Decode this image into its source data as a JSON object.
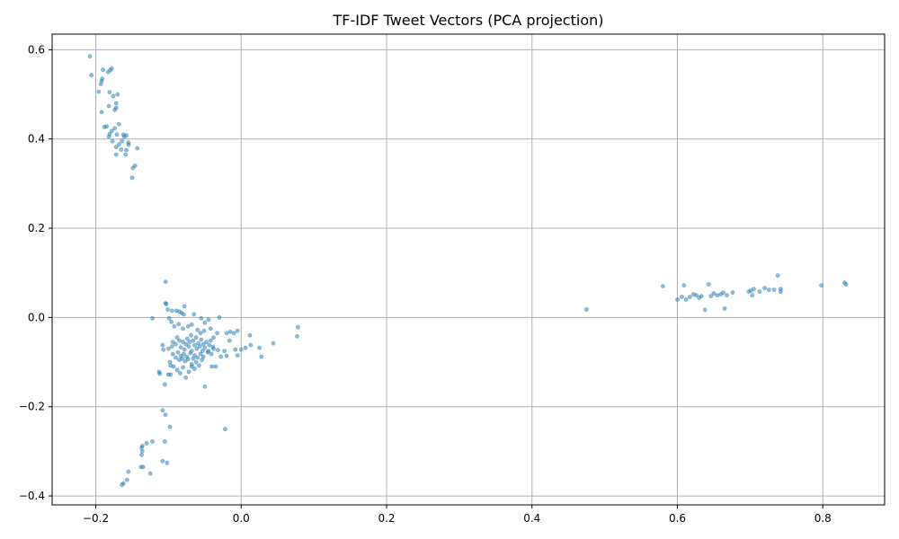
{
  "chart_data": {
    "type": "scatter",
    "title": "TF-IDF Tweet Vectors (PCA projection)",
    "xlabel": "",
    "ylabel": "",
    "xlim": [
      -0.26,
      0.885
    ],
    "ylim": [
      -0.42,
      0.635
    ],
    "xticks": [
      -0.2,
      0.0,
      0.2,
      0.4,
      0.6,
      0.8
    ],
    "yticks": [
      -0.4,
      -0.2,
      0.0,
      0.2,
      0.4,
      0.6
    ],
    "xtick_labels": [
      "−0.2",
      "0.0",
      "0.2",
      "0.4",
      "0.6",
      "0.8"
    ],
    "ytick_labels": [
      "−0.4",
      "−0.2",
      "0.0",
      "0.2",
      "0.4",
      "0.6"
    ],
    "grid": true,
    "marker_color": "#1f77b4",
    "marker_alpha": 0.5,
    "series": [
      {
        "name": "",
        "points": [
          [
            -0.208,
            0.585
          ],
          [
            -0.206,
            0.543
          ],
          [
            -0.196,
            0.506
          ],
          [
            -0.193,
            0.523
          ],
          [
            -0.192,
            0.53
          ],
          [
            -0.191,
            0.535
          ],
          [
            -0.19,
            0.555
          ],
          [
            -0.188,
            0.427
          ],
          [
            -0.192,
            0.46
          ],
          [
            -0.185,
            0.428
          ],
          [
            -0.183,
            0.55
          ],
          [
            -0.18,
            0.554
          ],
          [
            -0.178,
            0.558
          ],
          [
            -0.181,
            0.505
          ],
          [
            -0.176,
            0.496
          ],
          [
            -0.17,
            0.5
          ],
          [
            -0.182,
            0.474
          ],
          [
            -0.174,
            0.465
          ],
          [
            -0.172,
            0.47
          ],
          [
            -0.172,
            0.48
          ],
          [
            -0.168,
            0.433
          ],
          [
            -0.178,
            0.418
          ],
          [
            -0.174,
            0.424
          ],
          [
            -0.182,
            0.405
          ],
          [
            -0.181,
            0.411
          ],
          [
            -0.177,
            0.395
          ],
          [
            -0.171,
            0.41
          ],
          [
            -0.168,
            0.388
          ],
          [
            -0.164,
            0.395
          ],
          [
            -0.161,
            0.405
          ],
          [
            -0.162,
            0.41
          ],
          [
            -0.158,
            0.408
          ],
          [
            -0.172,
            0.382
          ],
          [
            -0.165,
            0.376
          ],
          [
            -0.158,
            0.375
          ],
          [
            -0.155,
            0.392
          ],
          [
            -0.155,
            0.387
          ],
          [
            -0.149,
            0.335
          ],
          [
            -0.146,
            0.34
          ],
          [
            -0.143,
            0.379
          ],
          [
            -0.15,
            0.313
          ],
          [
            -0.159,
            0.365
          ],
          [
            -0.172,
            0.365
          ],
          [
            -0.104,
            0.08
          ],
          [
            -0.104,
            0.032
          ],
          [
            -0.103,
            0.03
          ],
          [
            -0.101,
            0.018
          ],
          [
            -0.122,
            -0.002
          ],
          [
            -0.099,
            -0.002
          ],
          [
            -0.095,
            0.015
          ],
          [
            -0.089,
            0.015
          ],
          [
            -0.085,
            0.013
          ],
          [
            -0.082,
            0.01
          ],
          [
            -0.078,
            0.025
          ],
          [
            -0.079,
            0.007
          ],
          [
            -0.065,
            0.007
          ],
          [
            -0.055,
            -0.002
          ],
          [
            -0.05,
            -0.012
          ],
          [
            -0.045,
            -0.005
          ],
          [
            -0.03,
            0.0
          ],
          [
            -0.096,
            -0.01
          ],
          [
            -0.092,
            -0.02
          ],
          [
            -0.086,
            -0.015
          ],
          [
            -0.08,
            -0.025
          ],
          [
            -0.073,
            -0.02
          ],
          [
            -0.068,
            -0.016
          ],
          [
            -0.06,
            -0.028
          ],
          [
            -0.056,
            -0.035
          ],
          [
            -0.051,
            -0.03
          ],
          [
            -0.042,
            -0.025
          ],
          [
            -0.038,
            -0.045
          ],
          [
            -0.033,
            -0.035
          ],
          [
            -0.02,
            -0.035
          ],
          [
            -0.015,
            -0.032
          ],
          [
            -0.01,
            -0.035
          ],
          [
            -0.005,
            -0.03
          ],
          [
            0.012,
            -0.04
          ],
          [
            0.078,
            -0.022
          ],
          [
            0.077,
            -0.042
          ],
          [
            0.044,
            -0.058
          ],
          [
            0.025,
            -0.068
          ],
          [
            0.013,
            -0.062
          ],
          [
            0.006,
            -0.068
          ],
          [
            0.0,
            -0.072
          ],
          [
            -0.008,
            -0.072
          ],
          [
            -0.016,
            -0.052
          ],
          [
            -0.023,
            -0.075
          ],
          [
            -0.032,
            -0.073
          ],
          [
            -0.038,
            -0.07
          ],
          [
            -0.045,
            -0.075
          ],
          [
            -0.108,
            -0.062
          ],
          [
            -0.107,
            -0.072
          ],
          [
            -0.1,
            -0.07
          ],
          [
            -0.095,
            -0.065
          ],
          [
            -0.094,
            -0.055
          ],
          [
            -0.09,
            -0.06
          ],
          [
            -0.088,
            -0.045
          ],
          [
            -0.085,
            -0.052
          ],
          [
            -0.083,
            -0.067
          ],
          [
            -0.08,
            -0.055
          ],
          [
            -0.078,
            -0.072
          ],
          [
            -0.076,
            -0.06
          ],
          [
            -0.074,
            -0.048
          ],
          [
            -0.072,
            -0.065
          ],
          [
            -0.071,
            -0.055
          ],
          [
            -0.069,
            -0.04
          ],
          [
            -0.068,
            -0.075
          ],
          [
            -0.066,
            -0.052
          ],
          [
            -0.064,
            -0.062
          ],
          [
            -0.062,
            -0.045
          ],
          [
            -0.061,
            -0.07
          ],
          [
            -0.059,
            -0.058
          ],
          [
            -0.057,
            -0.065
          ],
          [
            -0.055,
            -0.05
          ],
          [
            -0.053,
            -0.075
          ],
          [
            -0.052,
            -0.06
          ],
          [
            -0.05,
            -0.068
          ],
          [
            -0.048,
            -0.055
          ],
          [
            -0.046,
            -0.078
          ],
          [
            -0.044,
            -0.062
          ],
          [
            -0.042,
            -0.052
          ],
          [
            -0.041,
            -0.082
          ],
          [
            -0.039,
            -0.066
          ],
          [
            -0.094,
            -0.082
          ],
          [
            -0.09,
            -0.09
          ],
          [
            -0.087,
            -0.078
          ],
          [
            -0.085,
            -0.095
          ],
          [
            -0.083,
            -0.086
          ],
          [
            -0.081,
            -0.092
          ],
          [
            -0.079,
            -0.082
          ],
          [
            -0.077,
            -0.098
          ],
          [
            -0.075,
            -0.088
          ],
          [
            -0.073,
            -0.093
          ],
          [
            -0.07,
            -0.08
          ],
          [
            -0.068,
            -0.105
          ],
          [
            -0.066,
            -0.092
          ],
          [
            -0.064,
            -0.085
          ],
          [
            -0.062,
            -0.1
          ],
          [
            -0.06,
            -0.09
          ],
          [
            -0.058,
            -0.108
          ],
          [
            -0.056,
            -0.082
          ],
          [
            -0.054,
            -0.095
          ],
          [
            -0.052,
            -0.088
          ],
          [
            -0.098,
            -0.1
          ],
          [
            -0.097,
            -0.108
          ],
          [
            -0.093,
            -0.11
          ],
          [
            -0.088,
            -0.118
          ],
          [
            -0.084,
            -0.125
          ],
          [
            -0.08,
            -0.112
          ],
          [
            -0.076,
            -0.135
          ],
          [
            -0.072,
            -0.122
          ],
          [
            -0.068,
            -0.11
          ],
          [
            -0.064,
            -0.115
          ],
          [
            -0.04,
            -0.11
          ],
          [
            -0.035,
            -0.11
          ],
          [
            -0.028,
            -0.088
          ],
          [
            -0.02,
            -0.086
          ],
          [
            -0.005,
            -0.085
          ],
          [
            0.028,
            -0.088
          ],
          [
            -0.113,
            -0.122
          ],
          [
            -0.112,
            -0.126
          ],
          [
            -0.1,
            -0.128
          ],
          [
            -0.097,
            -0.128
          ],
          [
            -0.105,
            -0.15
          ],
          [
            -0.05,
            -0.155
          ],
          [
            -0.022,
            -0.25
          ],
          [
            -0.108,
            -0.208
          ],
          [
            -0.104,
            -0.218
          ],
          [
            -0.098,
            -0.245
          ],
          [
            -0.105,
            -0.278
          ],
          [
            -0.122,
            -0.278
          ],
          [
            -0.13,
            -0.282
          ],
          [
            -0.136,
            -0.288
          ],
          [
            -0.137,
            -0.292
          ],
          [
            -0.136,
            -0.3
          ],
          [
            -0.137,
            -0.308
          ],
          [
            -0.108,
            -0.322
          ],
          [
            -0.102,
            -0.326
          ],
          [
            -0.138,
            -0.335
          ],
          [
            -0.135,
            -0.335
          ],
          [
            -0.155,
            -0.346
          ],
          [
            -0.125,
            -0.35
          ],
          [
            -0.157,
            -0.364
          ],
          [
            -0.162,
            -0.372
          ],
          [
            -0.164,
            -0.375
          ],
          [
            0.475,
            0.018
          ],
          [
            0.58,
            0.07
          ],
          [
            0.6,
            0.04
          ],
          [
            0.606,
            0.046
          ],
          [
            0.609,
            0.072
          ],
          [
            0.612,
            0.04
          ],
          [
            0.617,
            0.046
          ],
          [
            0.622,
            0.052
          ],
          [
            0.626,
            0.05
          ],
          [
            0.63,
            0.044
          ],
          [
            0.633,
            0.048
          ],
          [
            0.638,
            0.017
          ],
          [
            0.643,
            0.074
          ],
          [
            0.646,
            0.048
          ],
          [
            0.65,
            0.054
          ],
          [
            0.655,
            0.05
          ],
          [
            0.66,
            0.052
          ],
          [
            0.663,
            0.056
          ],
          [
            0.665,
            0.02
          ],
          [
            0.668,
            0.05
          ],
          [
            0.676,
            0.056
          ],
          [
            0.698,
            0.058
          ],
          [
            0.701,
            0.06
          ],
          [
            0.703,
            0.05
          ],
          [
            0.705,
            0.064
          ],
          [
            0.713,
            0.058
          ],
          [
            0.72,
            0.066
          ],
          [
            0.726,
            0.062
          ],
          [
            0.733,
            0.062
          ],
          [
            0.738,
            0.094
          ],
          [
            0.742,
            0.058
          ],
          [
            0.742,
            0.064
          ],
          [
            0.798,
            0.072
          ],
          [
            0.83,
            0.078
          ],
          [
            0.832,
            0.074
          ]
        ]
      }
    ]
  }
}
